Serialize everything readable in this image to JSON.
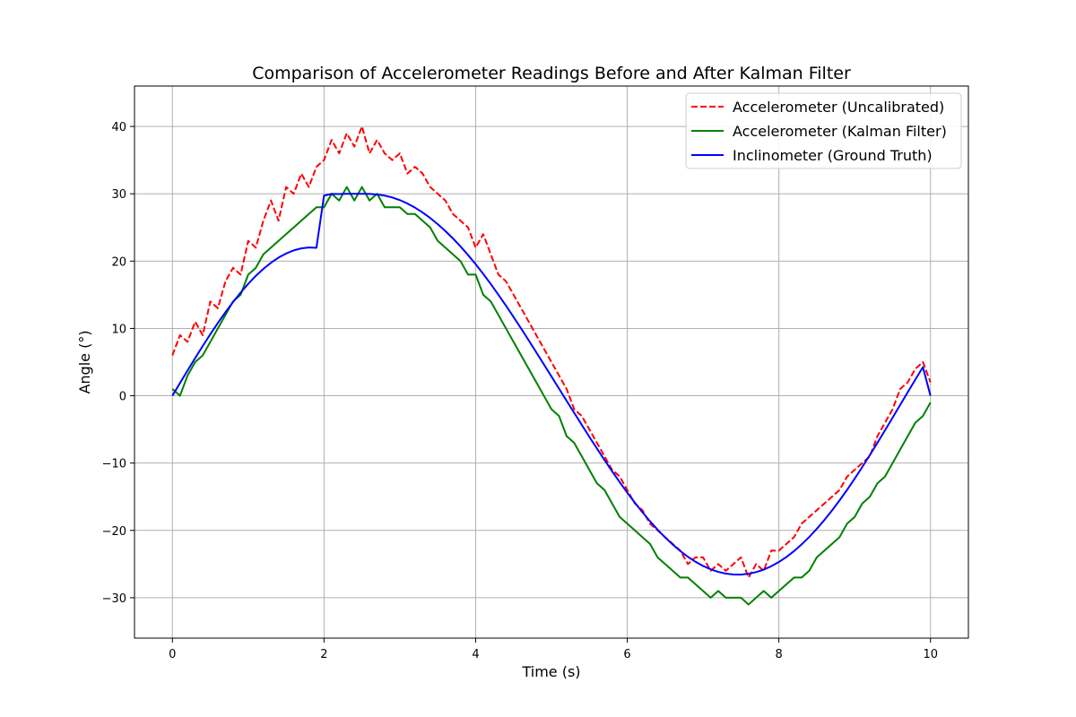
{
  "chart_data": {
    "type": "line",
    "title": "Comparison of Accelerometer Readings Before and After Kalman Filter",
    "xlabel": "Time (s)",
    "ylabel": "Angle (°)",
    "xlim": [
      -0.5,
      10.5
    ],
    "ylim": [
      -36,
      46
    ],
    "xticks": [
      0,
      2,
      4,
      6,
      8,
      10
    ],
    "yticks": [
      -30,
      -20,
      -10,
      0,
      10,
      20,
      30,
      40
    ],
    "xtick_labels": [
      "0",
      "2",
      "4",
      "6",
      "8",
      "10"
    ],
    "ytick_labels": [
      "−30",
      "−20",
      "−10",
      "0",
      "10",
      "20",
      "30",
      "40"
    ],
    "grid": true,
    "legend_position": "upper right",
    "series": [
      {
        "name": "Accelerometer (Uncalibrated)",
        "color": "#ff0000",
        "style": "dashed",
        "x": [
          0,
          0.1,
          0.2,
          0.3,
          0.4,
          0.5,
          0.6,
          0.7,
          0.8,
          0.9,
          1.0,
          1.1,
          1.2,
          1.3,
          1.4,
          1.5,
          1.6,
          1.7,
          1.8,
          1.9,
          2.0,
          2.1,
          2.2,
          2.3,
          2.4,
          2.5,
          2.6,
          2.7,
          2.8,
          2.9,
          3.0,
          3.1,
          3.2,
          3.3,
          3.4,
          3.5,
          3.6,
          3.7,
          3.8,
          3.9,
          4.0,
          4.1,
          4.2,
          4.3,
          4.4,
          4.5,
          4.6,
          4.7,
          4.8,
          4.9,
          5.0,
          5.1,
          5.2,
          5.3,
          5.4,
          5.5,
          5.6,
          5.7,
          5.8,
          5.9,
          6.0,
          6.1,
          6.2,
          6.3,
          6.4,
          6.5,
          6.6,
          6.7,
          6.8,
          6.9,
          7.0,
          7.1,
          7.2,
          7.3,
          7.4,
          7.5,
          7.6,
          7.7,
          7.8,
          7.9,
          8.0,
          8.1,
          8.2,
          8.3,
          8.4,
          8.5,
          8.6,
          8.7,
          8.8,
          8.9,
          9.0,
          9.1,
          9.2,
          9.3,
          9.4,
          9.5,
          9.6,
          9.7,
          9.8,
          9.9,
          10.0
        ],
        "y": [
          6,
          9,
          8,
          11,
          9,
          14,
          13,
          17,
          19,
          18,
          23,
          22,
          26,
          29,
          26,
          31,
          30,
          33,
          31,
          34,
          35,
          38,
          36,
          39,
          37,
          40,
          36,
          38,
          36,
          35,
          36,
          33,
          34,
          33,
          31,
          30,
          29,
          27,
          26,
          25,
          22,
          24,
          21,
          18,
          17,
          15,
          13,
          11,
          9,
          7,
          5,
          3,
          1,
          -2,
          -3,
          -5,
          -7,
          -9,
          -11,
          -12,
          -14,
          -16,
          -17,
          -19,
          -20,
          -21,
          -22,
          -23,
          -25,
          -24,
          -24,
          -26,
          -25,
          -26,
          -25,
          -24,
          -27,
          -25,
          -26,
          -23,
          -23,
          -22,
          -21,
          -19,
          -18,
          -17,
          -16,
          -15,
          -14,
          -12,
          -11,
          -10,
          -9,
          -6,
          -4,
          -2,
          1,
          2,
          4,
          5,
          2
        ]
      },
      {
        "name": "Accelerometer (Kalman Filter)",
        "color": "#008000",
        "style": "solid",
        "x": [
          0,
          0.1,
          0.2,
          0.3,
          0.4,
          0.5,
          0.6,
          0.7,
          0.8,
          0.9,
          1.0,
          1.1,
          1.2,
          1.3,
          1.4,
          1.5,
          1.6,
          1.7,
          1.8,
          1.9,
          2.0,
          2.1,
          2.2,
          2.3,
          2.4,
          2.5,
          2.6,
          2.7,
          2.8,
          2.9,
          3.0,
          3.1,
          3.2,
          3.3,
          3.4,
          3.5,
          3.6,
          3.7,
          3.8,
          3.9,
          4.0,
          4.1,
          4.2,
          4.3,
          4.4,
          4.5,
          4.6,
          4.7,
          4.8,
          4.9,
          5.0,
          5.1,
          5.2,
          5.3,
          5.4,
          5.5,
          5.6,
          5.7,
          5.8,
          5.9,
          6.0,
          6.1,
          6.2,
          6.3,
          6.4,
          6.5,
          6.6,
          6.7,
          6.8,
          6.9,
          7.0,
          7.1,
          7.2,
          7.3,
          7.4,
          7.5,
          7.6,
          7.7,
          7.8,
          7.9,
          8.0,
          8.1,
          8.2,
          8.3,
          8.4,
          8.5,
          8.6,
          8.7,
          8.8,
          8.9,
          9.0,
          9.1,
          9.2,
          9.3,
          9.4,
          9.5,
          9.6,
          9.7,
          9.8,
          9.9,
          10.0
        ],
        "y": [
          1,
          0,
          3,
          5,
          6,
          8,
          10,
          12,
          14,
          15,
          18,
          19,
          21,
          22,
          23,
          24,
          25,
          26,
          27,
          28,
          28,
          30,
          29,
          31,
          29,
          31,
          29,
          30,
          28,
          28,
          28,
          27,
          27,
          26,
          25,
          23,
          22,
          21,
          20,
          18,
          18,
          15,
          14,
          12,
          10,
          8,
          6,
          4,
          2,
          0,
          -2,
          -3,
          -6,
          -7,
          -9,
          -11,
          -13,
          -14,
          -16,
          -18,
          -19,
          -20,
          -21,
          -22,
          -24,
          -25,
          -26,
          -27,
          -27,
          -28,
          -29,
          -30,
          -29,
          -30,
          -30,
          -30,
          -31,
          -30,
          -29,
          -30,
          -29,
          -28,
          -27,
          -27,
          -26,
          -24,
          -23,
          -22,
          -21,
          -19,
          -18,
          -16,
          -15,
          -13,
          -12,
          -10,
          -8,
          -6,
          -4,
          -3,
          -1
        ]
      },
      {
        "name": "Inclinometer (Ground Truth)",
        "color": "#0000ff",
        "style": "solid",
        "x": [
          0,
          0.1,
          0.2,
          0.3,
          0.4,
          0.5,
          0.6,
          0.7,
          0.8,
          0.9,
          1.0,
          1.1,
          1.2,
          1.3,
          1.4,
          1.5,
          1.6,
          1.7,
          1.8,
          1.9,
          2.0,
          2.1,
          2.2,
          2.3,
          2.4,
          2.5,
          2.6,
          2.7,
          2.8,
          2.9,
          3.0,
          3.1,
          3.2,
          3.3,
          3.4,
          3.5,
          3.6,
          3.7,
          3.8,
          3.9,
          4.0,
          4.1,
          4.2,
          4.3,
          4.4,
          4.5,
          4.6,
          4.7,
          4.8,
          4.9,
          5.0,
          5.1,
          5.2,
          5.3,
          5.4,
          5.5,
          5.6,
          5.7,
          5.8,
          5.9,
          6.0,
          6.1,
          6.2,
          6.3,
          6.4,
          6.5,
          6.6,
          6.7,
          6.8,
          6.9,
          7.0,
          7.1,
          7.2,
          7.3,
          7.4,
          7.5,
          7.6,
          7.7,
          7.8,
          7.9,
          8.0,
          8.1,
          8.2,
          8.3,
          8.4,
          8.5,
          8.6,
          8.7,
          8.8,
          8.9,
          9.0,
          9.1,
          9.2,
          9.3,
          9.4,
          9.5,
          9.6,
          9.7,
          9.8,
          9.9,
          10.0
        ],
        "y": [
          0,
          1.88,
          3.75,
          5.59,
          7.39,
          9.14,
          10.81,
          12.41,
          13.92,
          15.32,
          16.62,
          17.8,
          18.84,
          19.75,
          20.52,
          21.13,
          21.59,
          21.89,
          22.02,
          21.98,
          29.73,
          29.98,
          29.96,
          29.99,
          30.0,
          30.0,
          29.98,
          29.9,
          29.73,
          29.45,
          29.06,
          28.55,
          27.94,
          27.22,
          26.4,
          25.48,
          24.47,
          23.37,
          22.18,
          20.9,
          19.54,
          18.1,
          16.59,
          15.01,
          13.38,
          11.7,
          9.98,
          8.23,
          6.45,
          4.66,
          2.86,
          1.06,
          -0.75,
          -2.54,
          -4.33,
          -6.1,
          -7.84,
          -9.55,
          -11.21,
          -12.83,
          -14.39,
          -15.88,
          -17.3,
          -18.64,
          -19.89,
          -21.05,
          -22.11,
          -23.07,
          -23.92,
          -24.66,
          -25.28,
          -25.78,
          -26.16,
          -26.42,
          -26.55,
          -26.56,
          -26.44,
          -26.19,
          -25.82,
          -25.32,
          -24.69,
          -23.94,
          -23.07,
          -22.08,
          -20.98,
          -19.77,
          -18.46,
          -17.05,
          -15.55,
          -13.97,
          -12.31,
          -10.59,
          -8.81,
          -6.99,
          -5.13,
          -3.25,
          -1.36,
          0.52,
          2.4,
          4.25,
          0
        ]
      }
    ]
  }
}
